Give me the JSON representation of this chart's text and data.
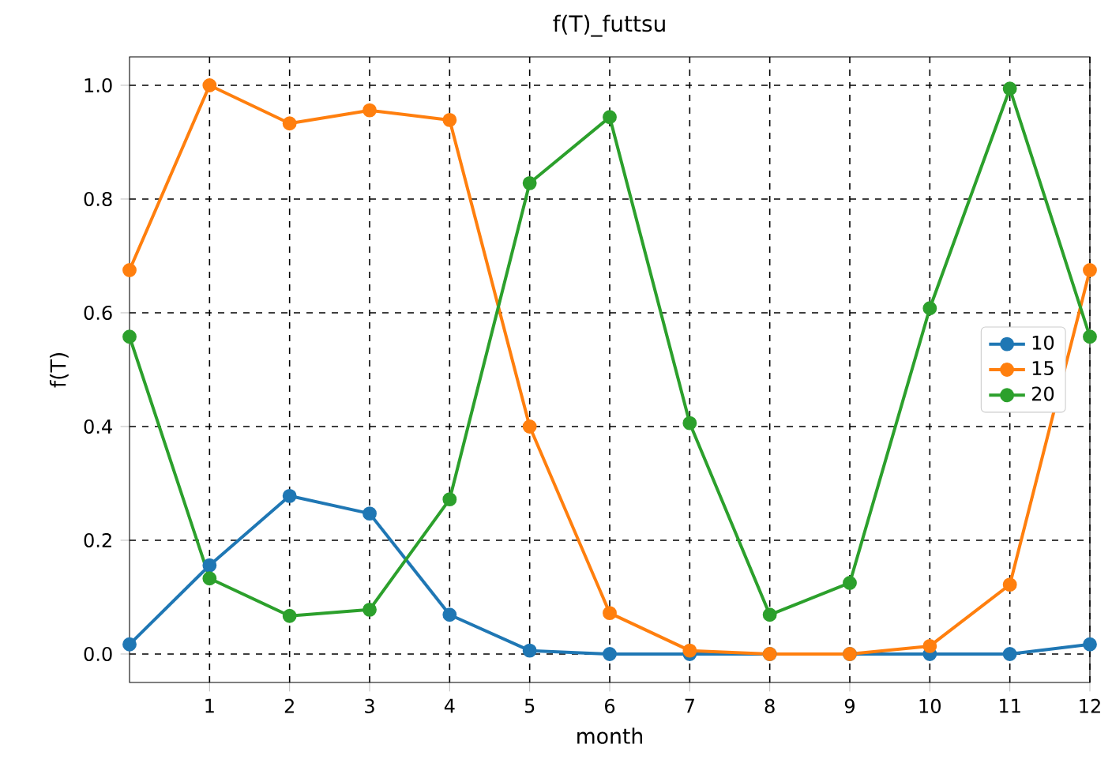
{
  "chart_data": {
    "type": "line",
    "title": "f(T)_futtsu",
    "xlabel": "month",
    "ylabel": "f(T)",
    "x": [
      0,
      1,
      2,
      3,
      4,
      5,
      6,
      7,
      8,
      9,
      10,
      11,
      12
    ],
    "series": [
      {
        "name": "10",
        "color": "#1f77b4",
        "values": [
          0.017,
          0.156,
          0.278,
          0.247,
          0.069,
          0.006,
          0,
          0,
          0,
          0,
          0,
          0,
          0.017
        ]
      },
      {
        "name": "15",
        "color": "#ff7f0e",
        "values": [
          0.675,
          1.0,
          0.933,
          0.956,
          0.939,
          0.4,
          0.072,
          0.006,
          0,
          0,
          0.014,
          0.122,
          0.675
        ]
      },
      {
        "name": "20",
        "color": "#2ca02c",
        "values": [
          0.558,
          0.133,
          0.067,
          0.078,
          0.272,
          0.828,
          0.944,
          0.406,
          0.069,
          0.125,
          0.608,
          0.994,
          0.558
        ]
      }
    ],
    "xlim": [
      0,
      12
    ],
    "xticks": [
      1,
      2,
      3,
      4,
      5,
      6,
      7,
      8,
      9,
      10,
      11,
      12
    ],
    "ylim": [
      -0.05,
      1.05
    ],
    "yticks": [
      {
        "value": 0,
        "label": "0.0"
      },
      {
        "value": 0.2,
        "label": "0.2"
      },
      {
        "value": 0.4,
        "label": "0.4"
      },
      {
        "value": 0.6,
        "label": "0.6"
      },
      {
        "value": 0.8,
        "label": "0.8"
      },
      {
        "value": 1.0,
        "label": "1.0"
      }
    ],
    "grid": true,
    "legend": "right",
    "marker": "circle",
    "line_style": "solid"
  }
}
